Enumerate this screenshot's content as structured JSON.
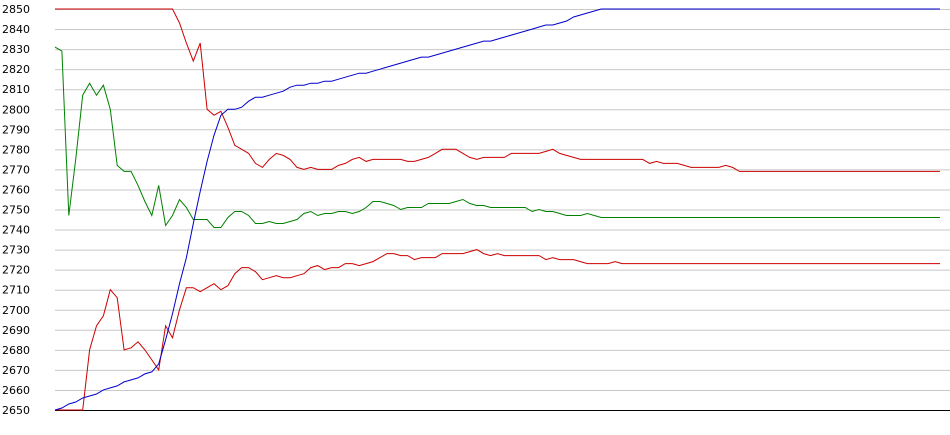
{
  "chart_data": {
    "type": "line",
    "title": "",
    "xlabel": "",
    "ylabel": "",
    "ylim": [
      2650,
      2850
    ],
    "yticks": [
      2650,
      2660,
      2670,
      2680,
      2690,
      2700,
      2710,
      2720,
      2730,
      2740,
      2750,
      2760,
      2770,
      2780,
      2790,
      2800,
      2810,
      2820,
      2830,
      2840,
      2850
    ],
    "grid": true,
    "legend": "none",
    "x": [
      0,
      1,
      2,
      3,
      4,
      5,
      6,
      7,
      8,
      9,
      10,
      11,
      12,
      13,
      14,
      15,
      16,
      17,
      18,
      19,
      20,
      21,
      22,
      23,
      24,
      25,
      26,
      27,
      28,
      29,
      30,
      31,
      32,
      33,
      34,
      35,
      36,
      37,
      38,
      39,
      40,
      41,
      42,
      43,
      44,
      45,
      46,
      47,
      48,
      49,
      50,
      51,
      52,
      53,
      54,
      55,
      56,
      57,
      58,
      59,
      60,
      61,
      62,
      63,
      64,
      65,
      66,
      67,
      68,
      69,
      70,
      71,
      72,
      73,
      74,
      75,
      76,
      77,
      78,
      79,
      80,
      81,
      82,
      83,
      84,
      85,
      86,
      87,
      88,
      89,
      90,
      91,
      92,
      93,
      94,
      95,
      96,
      97,
      98,
      99,
      100,
      101,
      102,
      103,
      104,
      105,
      106,
      107,
      108,
      109,
      110,
      111,
      112,
      113,
      114,
      115,
      116,
      117,
      118,
      119,
      120,
      121,
      122,
      123,
      124,
      125,
      126,
      127,
      128
    ],
    "series": [
      {
        "color": "#cc0000",
        "values": [
          2850,
          2850,
          2850,
          2850,
          2850,
          2850,
          2850,
          2850,
          2850,
          2850,
          2850,
          2850,
          2850,
          2850,
          2850,
          2850,
          2850,
          2850,
          2843,
          2833,
          2824,
          2833,
          2800,
          2797,
          2799,
          2791,
          2782,
          2780,
          2778,
          2773,
          2771,
          2775,
          2778,
          2777,
          2775,
          2771,
          2770,
          2771,
          2770,
          2770,
          2770,
          2772,
          2773,
          2775,
          2776,
          2774,
          2775,
          2775,
          2775,
          2775,
          2775,
          2774,
          2774,
          2775,
          2776,
          2778,
          2780,
          2780,
          2780,
          2778,
          2776,
          2775,
          2776,
          2776,
          2776,
          2776,
          2778,
          2778,
          2778,
          2778,
          2778,
          2779,
          2780,
          2778,
          2777,
          2776,
          2775,
          2775,
          2775,
          2775,
          2775,
          2775,
          2775,
          2775,
          2775,
          2775,
          2773,
          2774,
          2773,
          2773,
          2773,
          2772,
          2771,
          2771,
          2771,
          2771,
          2771,
          2772,
          2771,
          2769,
          2769,
          2769,
          2769,
          2769,
          2769,
          2769,
          2769,
          2769,
          2769,
          2769,
          2769,
          2769,
          2769,
          2769,
          2769,
          2769,
          2769,
          2769,
          2769,
          2769,
          2769,
          2769,
          2769,
          2769,
          2769,
          2769,
          2769,
          2769,
          2769
        ]
      },
      {
        "color": "#cc0000",
        "values": [
          2650,
          2650,
          2650,
          2650,
          2650,
          2680,
          2692,
          2697,
          2710,
          2706,
          2680,
          2681,
          2684,
          2680,
          2675,
          2670,
          2692,
          2686,
          2700,
          2711,
          2711,
          2709,
          2711,
          2713,
          2710,
          2712,
          2718,
          2721,
          2721,
          2719,
          2715,
          2716,
          2717,
          2716,
          2716,
          2717,
          2718,
          2721,
          2722,
          2720,
          2721,
          2721,
          2723,
          2723,
          2722,
          2723,
          2724,
          2726,
          2728,
          2728,
          2727,
          2727,
          2725,
          2726,
          2726,
          2726,
          2728,
          2728,
          2728,
          2728,
          2729,
          2730,
          2728,
          2727,
          2728,
          2727,
          2727,
          2727,
          2727,
          2727,
          2727,
          2725,
          2726,
          2725,
          2725,
          2725,
          2724,
          2723,
          2723,
          2723,
          2723,
          2724,
          2723,
          2723,
          2723,
          2723,
          2723,
          2723,
          2723,
          2723,
          2723,
          2723,
          2723,
          2723,
          2723,
          2723,
          2723,
          2723,
          2723,
          2723,
          2723,
          2723,
          2723,
          2723,
          2723,
          2723,
          2723,
          2723,
          2723,
          2723,
          2723,
          2723,
          2723,
          2723,
          2723,
          2723,
          2723,
          2723,
          2723,
          2723,
          2723,
          2723,
          2723,
          2723,
          2723,
          2723,
          2723,
          2723,
          2723
        ]
      },
      {
        "color": "#008000",
        "values": [
          2831,
          2829,
          2747,
          2775,
          2807,
          2813,
          2807,
          2812,
          2800,
          2772,
          2769,
          2769,
          2762,
          2754,
          2747,
          2762,
          2742,
          2747,
          2755,
          2751,
          2745,
          2745,
          2745,
          2741,
          2741,
          2746,
          2749,
          2749,
          2747,
          2743,
          2743,
          2744,
          2743,
          2743,
          2744,
          2745,
          2748,
          2749,
          2747,
          2748,
          2748,
          2749,
          2749,
          2748,
          2749,
          2751,
          2754,
          2754,
          2753,
          2752,
          2750,
          2751,
          2751,
          2751,
          2753,
          2753,
          2753,
          2753,
          2754,
          2755,
          2753,
          2752,
          2752,
          2751,
          2751,
          2751,
          2751,
          2751,
          2751,
          2749,
          2750,
          2749,
          2749,
          2748,
          2747,
          2747,
          2747,
          2748,
          2747,
          2746,
          2746,
          2746,
          2746,
          2746,
          2746,
          2746,
          2746,
          2746,
          2746,
          2746,
          2746,
          2746,
          2746,
          2746,
          2746,
          2746,
          2746,
          2746,
          2746,
          2746,
          2746,
          2746,
          2746,
          2746,
          2746,
          2746,
          2746,
          2746,
          2746,
          2746,
          2746,
          2746,
          2746,
          2746,
          2746,
          2746,
          2746,
          2746,
          2746,
          2746,
          2746,
          2746,
          2746,
          2746,
          2746,
          2746,
          2746,
          2746,
          2746
        ]
      },
      {
        "color": "#0000cc",
        "values": [
          2650,
          2651,
          2653,
          2654,
          2656,
          2657,
          2658,
          2660,
          2661,
          2662,
          2664,
          2665,
          2666,
          2668,
          2669,
          2673,
          2685,
          2698,
          2713,
          2726,
          2743,
          2759,
          2774,
          2787,
          2797,
          2800,
          2800,
          2801,
          2804,
          2806,
          2806,
          2807,
          2808,
          2809,
          2811,
          2812,
          2812,
          2813,
          2813,
          2814,
          2814,
          2815,
          2816,
          2817,
          2818,
          2818,
          2819,
          2820,
          2821,
          2822,
          2823,
          2824,
          2825,
          2826,
          2826,
          2827,
          2828,
          2829,
          2830,
          2831,
          2832,
          2833,
          2834,
          2834,
          2835,
          2836,
          2837,
          2838,
          2839,
          2840,
          2841,
          2842,
          2842,
          2843,
          2844,
          2846,
          2847,
          2848,
          2849,
          2850,
          2850,
          2850,
          2850,
          2850,
          2850,
          2850,
          2850,
          2850,
          2850,
          2850,
          2850,
          2850,
          2850,
          2850,
          2850,
          2850,
          2850,
          2850,
          2850,
          2850,
          2850,
          2850,
          2850,
          2850,
          2850,
          2850,
          2850,
          2850,
          2850,
          2850,
          2850,
          2850,
          2850,
          2850,
          2850,
          2850,
          2850,
          2850,
          2850,
          2850,
          2850,
          2850,
          2850,
          2850,
          2850,
          2850,
          2850,
          2850,
          2850
        ]
      }
    ]
  }
}
